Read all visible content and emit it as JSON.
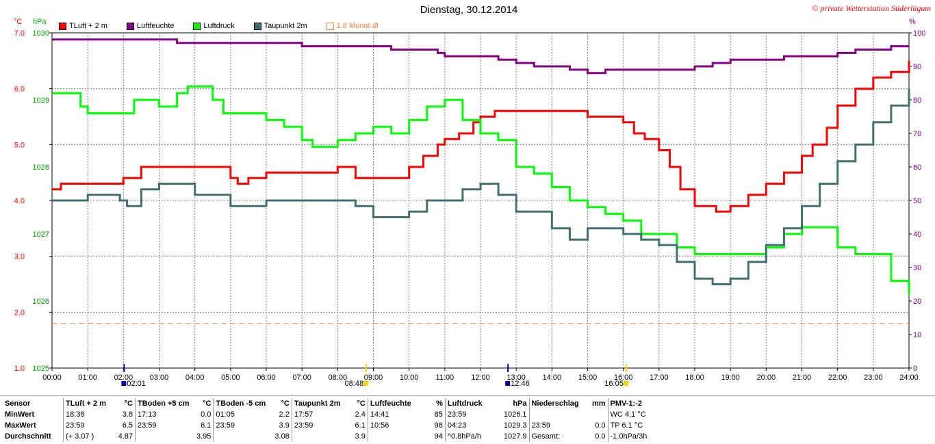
{
  "header": {
    "title": "Dienstag, 30.12.2014",
    "copyright": "© private Wetterstation Süderlügum"
  },
  "units": {
    "left_temp": "°C",
    "left_pressure": "hPa",
    "right_humidity": "%"
  },
  "legend": [
    {
      "label": "TLuft + 2 m",
      "color": "#ff0000",
      "hollow": false
    },
    {
      "label": "Luftfeuchte",
      "color": "#800080",
      "hollow": false
    },
    {
      "label": "Luftdruck",
      "color": "#00ff00",
      "hollow": false
    },
    {
      "label": "Taupunkt 2m",
      "color": "#407070",
      "hollow": false
    },
    {
      "label": "1.8 Monat-Ø",
      "color": "#ff8040",
      "hollow": true
    }
  ],
  "chart_data": {
    "type": "line",
    "x_ticks": [
      "00:00",
      "01:00",
      "02:00",
      "03:00",
      "04:00",
      "05:00",
      "06:00",
      "07:00",
      "08:00",
      "09:00",
      "10:00",
      "11:00",
      "12:00",
      "13:00",
      "14:00",
      "15:00",
      "16:00",
      "17:00",
      "18:00",
      "19:00",
      "20:00",
      "21:00",
      "22:00",
      "23:00",
      "24:00"
    ],
    "y_temp_ticks": [
      "7.0",
      "6.0",
      "5.0",
      "4.0",
      "3.0",
      "2.0",
      "1.0"
    ],
    "y_temp_lim": [
      1.0,
      7.0
    ],
    "y_pressure_ticks": [
      "1030",
      "1029",
      "1028",
      "1027",
      "1026",
      "1025"
    ],
    "y_pressure_lim": [
      1025,
      1030
    ],
    "y_hum_ticks": [
      "100",
      "90",
      "80",
      "70",
      "60",
      "50",
      "40",
      "30",
      "20",
      "10",
      "0"
    ],
    "y_hum_lim": [
      0,
      100
    ],
    "grid": true,
    "event_markers": [
      {
        "label": "02:01",
        "hour": 2.02,
        "color": "#0000aa"
      },
      {
        "label": "08:48",
        "hour": 8.8,
        "color": "#ffd400"
      },
      {
        "label": "12:46",
        "hour": 12.77,
        "color": "#0000aa"
      },
      {
        "label": "16:05",
        "hour": 16.08,
        "color": "#ffd400"
      }
    ],
    "series": [
      {
        "name": "TLuft + 2 m",
        "axis": "temp",
        "color": "#ff0000",
        "x": [
          0,
          0.25,
          1.1,
          1.5,
          2.0,
          2.5,
          3.5,
          4.0,
          5.0,
          5.2,
          5.5,
          6.0,
          7.0,
          8.0,
          8.5,
          9.0,
          9.5,
          10.0,
          10.4,
          10.8,
          11.0,
          11.4,
          11.8,
          12.0,
          12.4,
          12.8,
          13.5,
          14.0,
          14.5,
          15.0,
          15.5,
          16.0,
          16.3,
          16.6,
          17.0,
          17.3,
          17.6,
          18.0,
          18.3,
          18.6,
          19.0,
          19.5,
          20.0,
          20.5,
          21.0,
          21.3,
          21.7,
          22.0,
          22.5,
          23.0,
          23.5,
          24.0
        ],
        "y": [
          4.2,
          4.3,
          4.3,
          4.3,
          4.4,
          4.6,
          4.6,
          4.6,
          4.4,
          4.3,
          4.4,
          4.5,
          4.5,
          4.6,
          4.4,
          4.4,
          4.4,
          4.6,
          4.8,
          5.0,
          5.1,
          5.2,
          5.4,
          5.5,
          5.6,
          5.6,
          5.6,
          5.6,
          5.6,
          5.5,
          5.5,
          5.4,
          5.2,
          5.1,
          4.9,
          4.6,
          4.2,
          3.9,
          3.9,
          3.8,
          3.9,
          4.1,
          4.3,
          4.5,
          4.8,
          5.0,
          5.3,
          5.7,
          6.0,
          6.2,
          6.3,
          6.5
        ]
      },
      {
        "name": "Luftfeuchte",
        "axis": "hum",
        "color": "#800080",
        "x": [
          0,
          1,
          2,
          3,
          3.5,
          4,
          5,
          6,
          7,
          8,
          9,
          9.5,
          10,
          10.8,
          11,
          11.5,
          12,
          12.5,
          13,
          13.5,
          14,
          14.5,
          15,
          15.5,
          16,
          16.5,
          17,
          17.5,
          18,
          18.5,
          19,
          19.5,
          20,
          20.5,
          21,
          21.5,
          22,
          22.5,
          23,
          23.5,
          24
        ],
        "y": [
          98,
          98,
          98,
          98,
          97,
          97,
          97,
          97,
          96,
          96,
          96,
          95,
          95,
          94,
          93,
          93,
          93,
          92,
          91,
          90,
          90,
          89,
          88,
          89,
          89,
          89,
          89,
          89,
          90,
          91,
          92,
          92,
          92,
          93,
          93,
          93,
          94,
          95,
          95,
          96,
          96
        ]
      },
      {
        "name": "Luftdruck",
        "axis": "pressure",
        "color": "#00ff00",
        "x": [
          0,
          0.5,
          0.8,
          1.0,
          2.0,
          2.3,
          2.5,
          3.0,
          3.5,
          3.8,
          4.0,
          4.5,
          4.8,
          5.0,
          5.5,
          6.0,
          6.5,
          7.0,
          7.3,
          7.5,
          8.0,
          8.5,
          9.0,
          9.5,
          10.0,
          10.5,
          11.0,
          11.5,
          12.0,
          12.5,
          13.0,
          13.5,
          14.0,
          14.5,
          15.0,
          15.5,
          16.0,
          16.5,
          17.0,
          17.5,
          18.0,
          18.5,
          19.0,
          19.5,
          20.0,
          20.5,
          21.0,
          21.5,
          22.0,
          22.5,
          23.0,
          23.5,
          24.0
        ],
        "y": [
          1029.1,
          1029.1,
          1028.9,
          1028.8,
          1028.8,
          1029.0,
          1029.0,
          1028.9,
          1029.1,
          1029.2,
          1029.2,
          1029.0,
          1028.8,
          1028.8,
          1028.8,
          1028.7,
          1028.6,
          1028.4,
          1028.3,
          1028.3,
          1028.4,
          1028.5,
          1028.6,
          1028.5,
          1028.7,
          1028.9,
          1029.0,
          1028.7,
          1028.5,
          1028.4,
          1028.0,
          1027.9,
          1027.7,
          1027.5,
          1027.4,
          1027.3,
          1027.2,
          1027.0,
          1027.0,
          1026.8,
          1026.7,
          1026.7,
          1026.7,
          1026.7,
          1026.8,
          1027.0,
          1027.1,
          1027.1,
          1026.8,
          1026.7,
          1026.7,
          1026.3,
          1026.1
        ]
      },
      {
        "name": "Taupunkt 2m",
        "axis": "temp",
        "color": "#407070",
        "x": [
          0,
          1,
          1.9,
          2.1,
          2.5,
          3.0,
          3.5,
          4.0,
          4.5,
          5.0,
          5.5,
          6.0,
          7.0,
          8.0,
          8.5,
          9.0,
          9.5,
          10.0,
          10.5,
          11.0,
          11.5,
          12.0,
          12.5,
          13.0,
          13.5,
          14.0,
          14.5,
          15.0,
          15.5,
          16.0,
          16.5,
          17.0,
          17.5,
          18.0,
          18.5,
          19.0,
          19.5,
          20.0,
          20.5,
          21.0,
          21.5,
          22.0,
          22.5,
          23.0,
          23.5,
          24.0
        ],
        "y": [
          4.0,
          4.1,
          4.0,
          3.9,
          4.2,
          4.3,
          4.3,
          4.1,
          4.1,
          3.9,
          3.9,
          4.0,
          4.0,
          4.0,
          3.9,
          3.7,
          3.7,
          3.8,
          4.0,
          4.0,
          4.2,
          4.3,
          4.1,
          3.8,
          3.8,
          3.5,
          3.3,
          3.5,
          3.5,
          3.4,
          3.3,
          3.2,
          2.9,
          2.6,
          2.5,
          2.6,
          2.9,
          3.2,
          3.5,
          3.9,
          4.3,
          4.7,
          5.0,
          5.4,
          5.7,
          6.0
        ]
      },
      {
        "name": "1.8 Monat-Ø",
        "axis": "temp",
        "color": "#ff8040",
        "dashed": true,
        "x": [
          0,
          24
        ],
        "y": [
          1.8,
          1.8
        ]
      }
    ]
  },
  "stats": {
    "header": [
      "Sensor",
      "TLuft + 2 m",
      "°C",
      "TBoden +5 cm",
      "°C",
      "TBoden -5 cm",
      "°C",
      "Taupunkt 2m",
      "°C",
      "Luftfeuchte",
      "%",
      "Luftdruck",
      "hPa",
      "Niederschlag",
      "mm",
      "PMV-1:-2"
    ],
    "rows": [
      [
        "MinWert",
        "18:38",
        "3.8",
        "17:13",
        "0.0",
        "01:05",
        "2.2",
        "17:57",
        "2.4",
        "14:41",
        "85",
        "23:59",
        "1026.1",
        "",
        "",
        "WC 4.1 °C"
      ],
      [
        "MaxWert",
        "23:59",
        "6.5",
        "23:59",
        "6.1",
        "23:59",
        "3.9",
        "23:59",
        "6.1",
        "10:56",
        "98",
        "04:23",
        "1029.3",
        "23:59",
        "0.0",
        "TP 6.1 °C"
      ],
      [
        "Durchschnitt",
        "(+ 3.07 )",
        "4.87",
        "",
        "3.95",
        "",
        "3.08",
        "",
        "3.9",
        "",
        "94",
        "^0.8hPa/h",
        "1027.9",
        "Gesamt:",
        "0.0",
        "-1.0hPa/3h"
      ]
    ]
  }
}
